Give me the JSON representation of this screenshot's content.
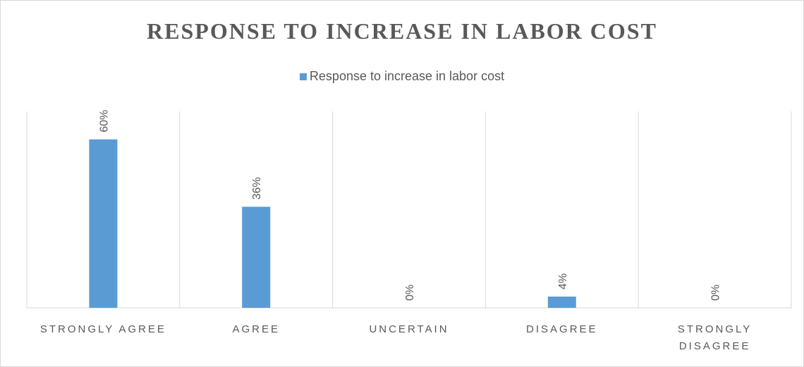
{
  "chart_data": {
    "type": "bar",
    "title": "RESPONSE TO INCREASE IN LABOR COST",
    "categories": [
      "STRONGLY AGREE",
      "AGREE",
      "UNCERTAIN",
      "DISAGREE",
      "STRONGLY DISAGREE"
    ],
    "series": [
      {
        "name": "Response to increase in labor cost",
        "values": [
          60,
          36,
          0,
          4,
          0
        ],
        "labels": [
          "60%",
          "36%",
          "0%",
          "4%",
          "0%"
        ],
        "color": "#5b9bd5"
      }
    ],
    "ylim": [
      0,
      70
    ],
    "legend_position": "top",
    "grid": "vertical-category-separators",
    "data_label_orientation": "rotated-90"
  }
}
